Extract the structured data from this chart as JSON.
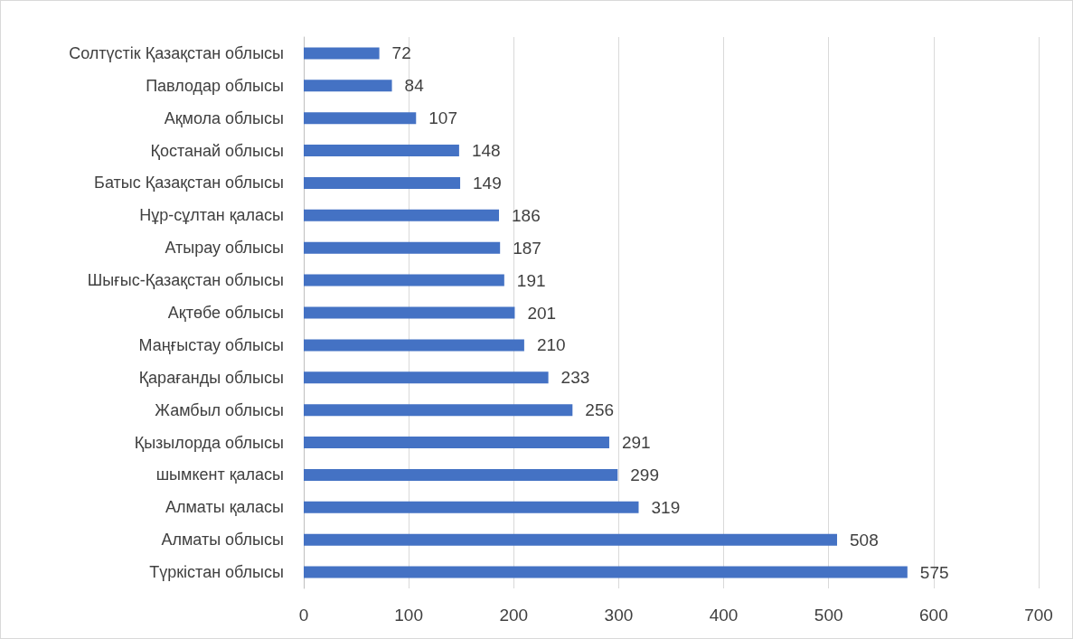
{
  "chart_data": {
    "type": "bar",
    "orientation": "horizontal",
    "categories": [
      "Солтүстік Қазақстан облысы",
      "Павлодар облысы",
      "Ақмола облысы",
      "Қостанай облысы",
      "Батыс Қазақстан облысы",
      "Нұр-сұлтан қаласы",
      "Атырау облысы",
      "Шығыс-Қазақстан облысы",
      "Ақтөбе облысы",
      "Маңғыстау облысы",
      "Қарағанды облысы",
      "Жамбыл облысы",
      "Қызылорда облысы",
      "шымкент қаласы",
      "Алматы қаласы",
      "Алматы облысы",
      "Түркістан облысы"
    ],
    "values": [
      72,
      84,
      107,
      148,
      149,
      186,
      187,
      191,
      201,
      210,
      233,
      256,
      291,
      299,
      319,
      508,
      575
    ],
    "color": "#4472c4",
    "xlim": [
      0,
      700
    ],
    "xticks": [
      0,
      100,
      200,
      300,
      400,
      500,
      600,
      700
    ],
    "grid": "x",
    "data_labels": true
  }
}
